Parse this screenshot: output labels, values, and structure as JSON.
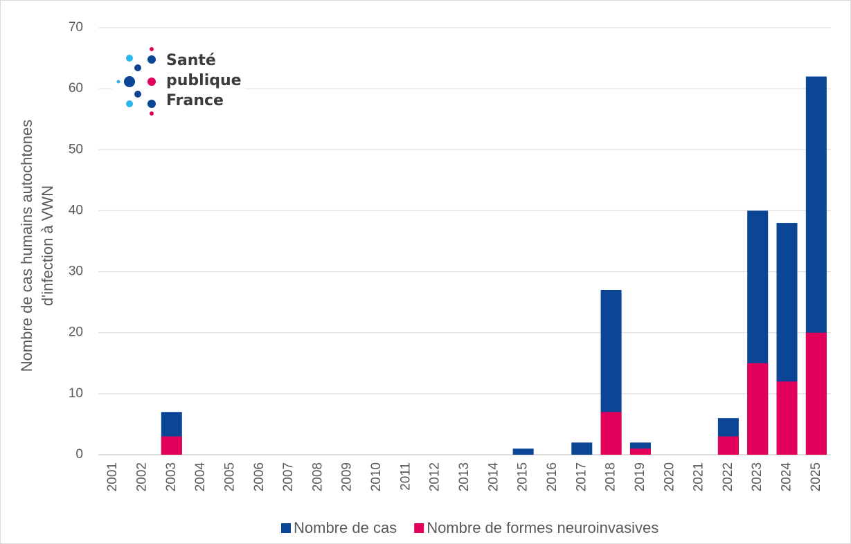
{
  "chart_data": {
    "type": "bar",
    "y_label": [
      "Nombre de cas humains autochtones",
      "d'infection à VWN"
    ],
    "logo": [
      "Santé",
      "publique",
      "France"
    ],
    "categories": [
      "2001",
      "2002",
      "2003",
      "2004",
      "2005",
      "2006",
      "2007",
      "2008",
      "2009",
      "2010",
      "2011",
      "2012",
      "2013",
      "2014",
      "2015",
      "2016",
      "2017",
      "2018",
      "2019",
      "2020",
      "2021",
      "2022",
      "2023",
      "2024",
      "2025"
    ],
    "series": [
      {
        "name": "Nombre de cas",
        "color": "#0b4595",
        "values": [
          0,
          0,
          7,
          0,
          0,
          0,
          0,
          0,
          0,
          0,
          0,
          0,
          0,
          0,
          1,
          0,
          2,
          27,
          2,
          0,
          0,
          6,
          40,
          38,
          62
        ]
      },
      {
        "name": "Nombre de formes neuroinvasives",
        "color": "#e2005a",
        "values": [
          0,
          0,
          3,
          0,
          0,
          0,
          0,
          0,
          0,
          0,
          0,
          0,
          0,
          0,
          0,
          0,
          0,
          7,
          1,
          0,
          0,
          3,
          15,
          12,
          20
        ]
      }
    ],
    "ylim": [
      0,
      70
    ],
    "yticks": [
      0,
      10,
      20,
      30,
      40,
      50,
      60,
      70
    ],
    "grid": true,
    "legend": "bottom"
  }
}
